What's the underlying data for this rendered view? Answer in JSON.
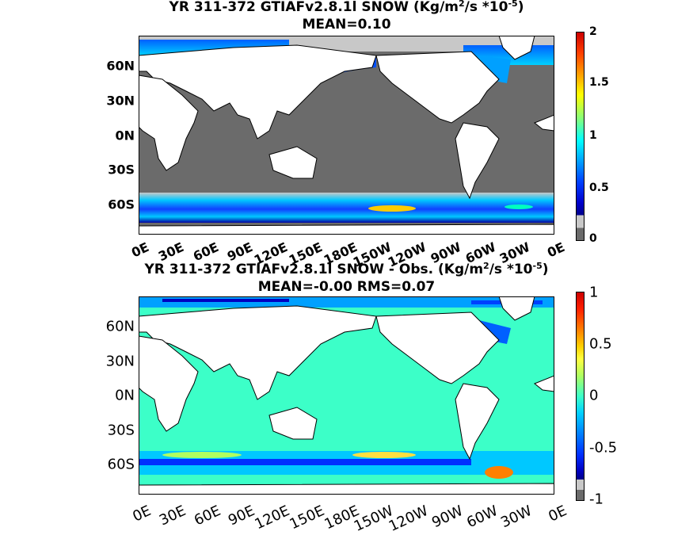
{
  "panels": [
    {
      "title_line1_pre": "YR 311-372 GTIAFv2.8.1l SNOW (Kg/m",
      "title_sup1": "2",
      "title_line1_mid": "/s   *10",
      "title_sup2": "-5",
      "title_line1_post": ")",
      "title_line2": "MEAN=0.10",
      "y_ticks": [
        "60N",
        "30N",
        "0N",
        "30S",
        "60S"
      ],
      "x_ticks": [
        "0E",
        "30E",
        "60E",
        "90E",
        "120E",
        "150E",
        "180E",
        "150W",
        "120W",
        "90W",
        "60W",
        "30W",
        "0E"
      ],
      "colorbar_ticks": [
        "2",
        "1.5",
        "1",
        "0.5",
        "0"
      ],
      "colorbar_range": [
        0,
        2
      ],
      "ocean_color": "#6b6b6b",
      "land_color": "#ffffff"
    },
    {
      "title_line1_pre": "YR 311-372 GTIAFv2.8.1l SNOW - Obs. (Kg/m",
      "title_sup1": "2",
      "title_line1_mid": "/s *10",
      "title_sup2": "-5",
      "title_line1_post": ")",
      "title_line2": "MEAN=-0.00   RMS=0.07",
      "y_ticks": [
        "60N",
        "30N",
        "0N",
        "30S",
        "60S"
      ],
      "x_ticks": [
        "0E",
        "30E",
        "60E",
        "90E",
        "120E",
        "150E",
        "180E",
        "150W",
        "120W",
        "90W",
        "60W",
        "30W",
        "0E"
      ],
      "colorbar_ticks": [
        "1",
        "0.5",
        "0",
        "-0.5",
        "-1"
      ],
      "colorbar_range": [
        -1,
        1
      ],
      "ocean_color": "#3cffc8",
      "land_color": "#ffffff"
    }
  ],
  "chart_data": [
    {
      "type": "heatmap",
      "title": "YR 311-372 GTIAFv2.8.1l SNOW (Kg/m2/s *10-5) MEAN=0.10",
      "x_ticks": [
        "0E",
        "30E",
        "60E",
        "90E",
        "120E",
        "150E",
        "180E",
        "150W",
        "120W",
        "90W",
        "60W",
        "30W",
        "0E"
      ],
      "y_ticks": [
        "60N",
        "30N",
        "0N",
        "30S",
        "60S"
      ],
      "colorbar": [
        0,
        2
      ],
      "colormap": "jet with gray for zero"
    },
    {
      "type": "heatmap",
      "title": "YR 311-372 GTIAFv2.8.1l SNOW - Obs. (Kg/m2/s *10-5) MEAN=-0.00 RMS=0.07",
      "x_ticks": [
        "0E",
        "30E",
        "60E",
        "90E",
        "120E",
        "150E",
        "180E",
        "150W",
        "120W",
        "90W",
        "60W",
        "30W",
        "0E"
      ],
      "y_ticks": [
        "60N",
        "30N",
        "0N",
        "30S",
        "60S"
      ],
      "colorbar": [
        -1,
        1
      ],
      "colormap": "jet"
    }
  ]
}
